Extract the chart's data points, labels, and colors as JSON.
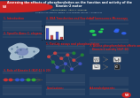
{
  "title_line1": "Assessing the effects of phosphorylation on the function and activity of the",
  "title_line2": "Kinesin-2 motor",
  "authors": "Ayoola Fasawe,  Vitaly V. Vogelaar",
  "institution": "Department of Chemistry, Western Illinois University, Macomb, IL 61455-1390",
  "bg_color": "#1e3a5f",
  "header_color": "#1e3a5f",
  "panel_color": "#ffffff",
  "title_text_color": "#ffffff",
  "logo_color": "#cc2222",
  "section_header_color": "#cc2222",
  "accent_blue": "#3355aa",
  "cell_fill": "#c5d5e8",
  "cell_nucleus": "#7788bb",
  "fluor_bg": "#000510",
  "green_fluor": "#22ee55",
  "blue_fluor": "#3366ff"
}
